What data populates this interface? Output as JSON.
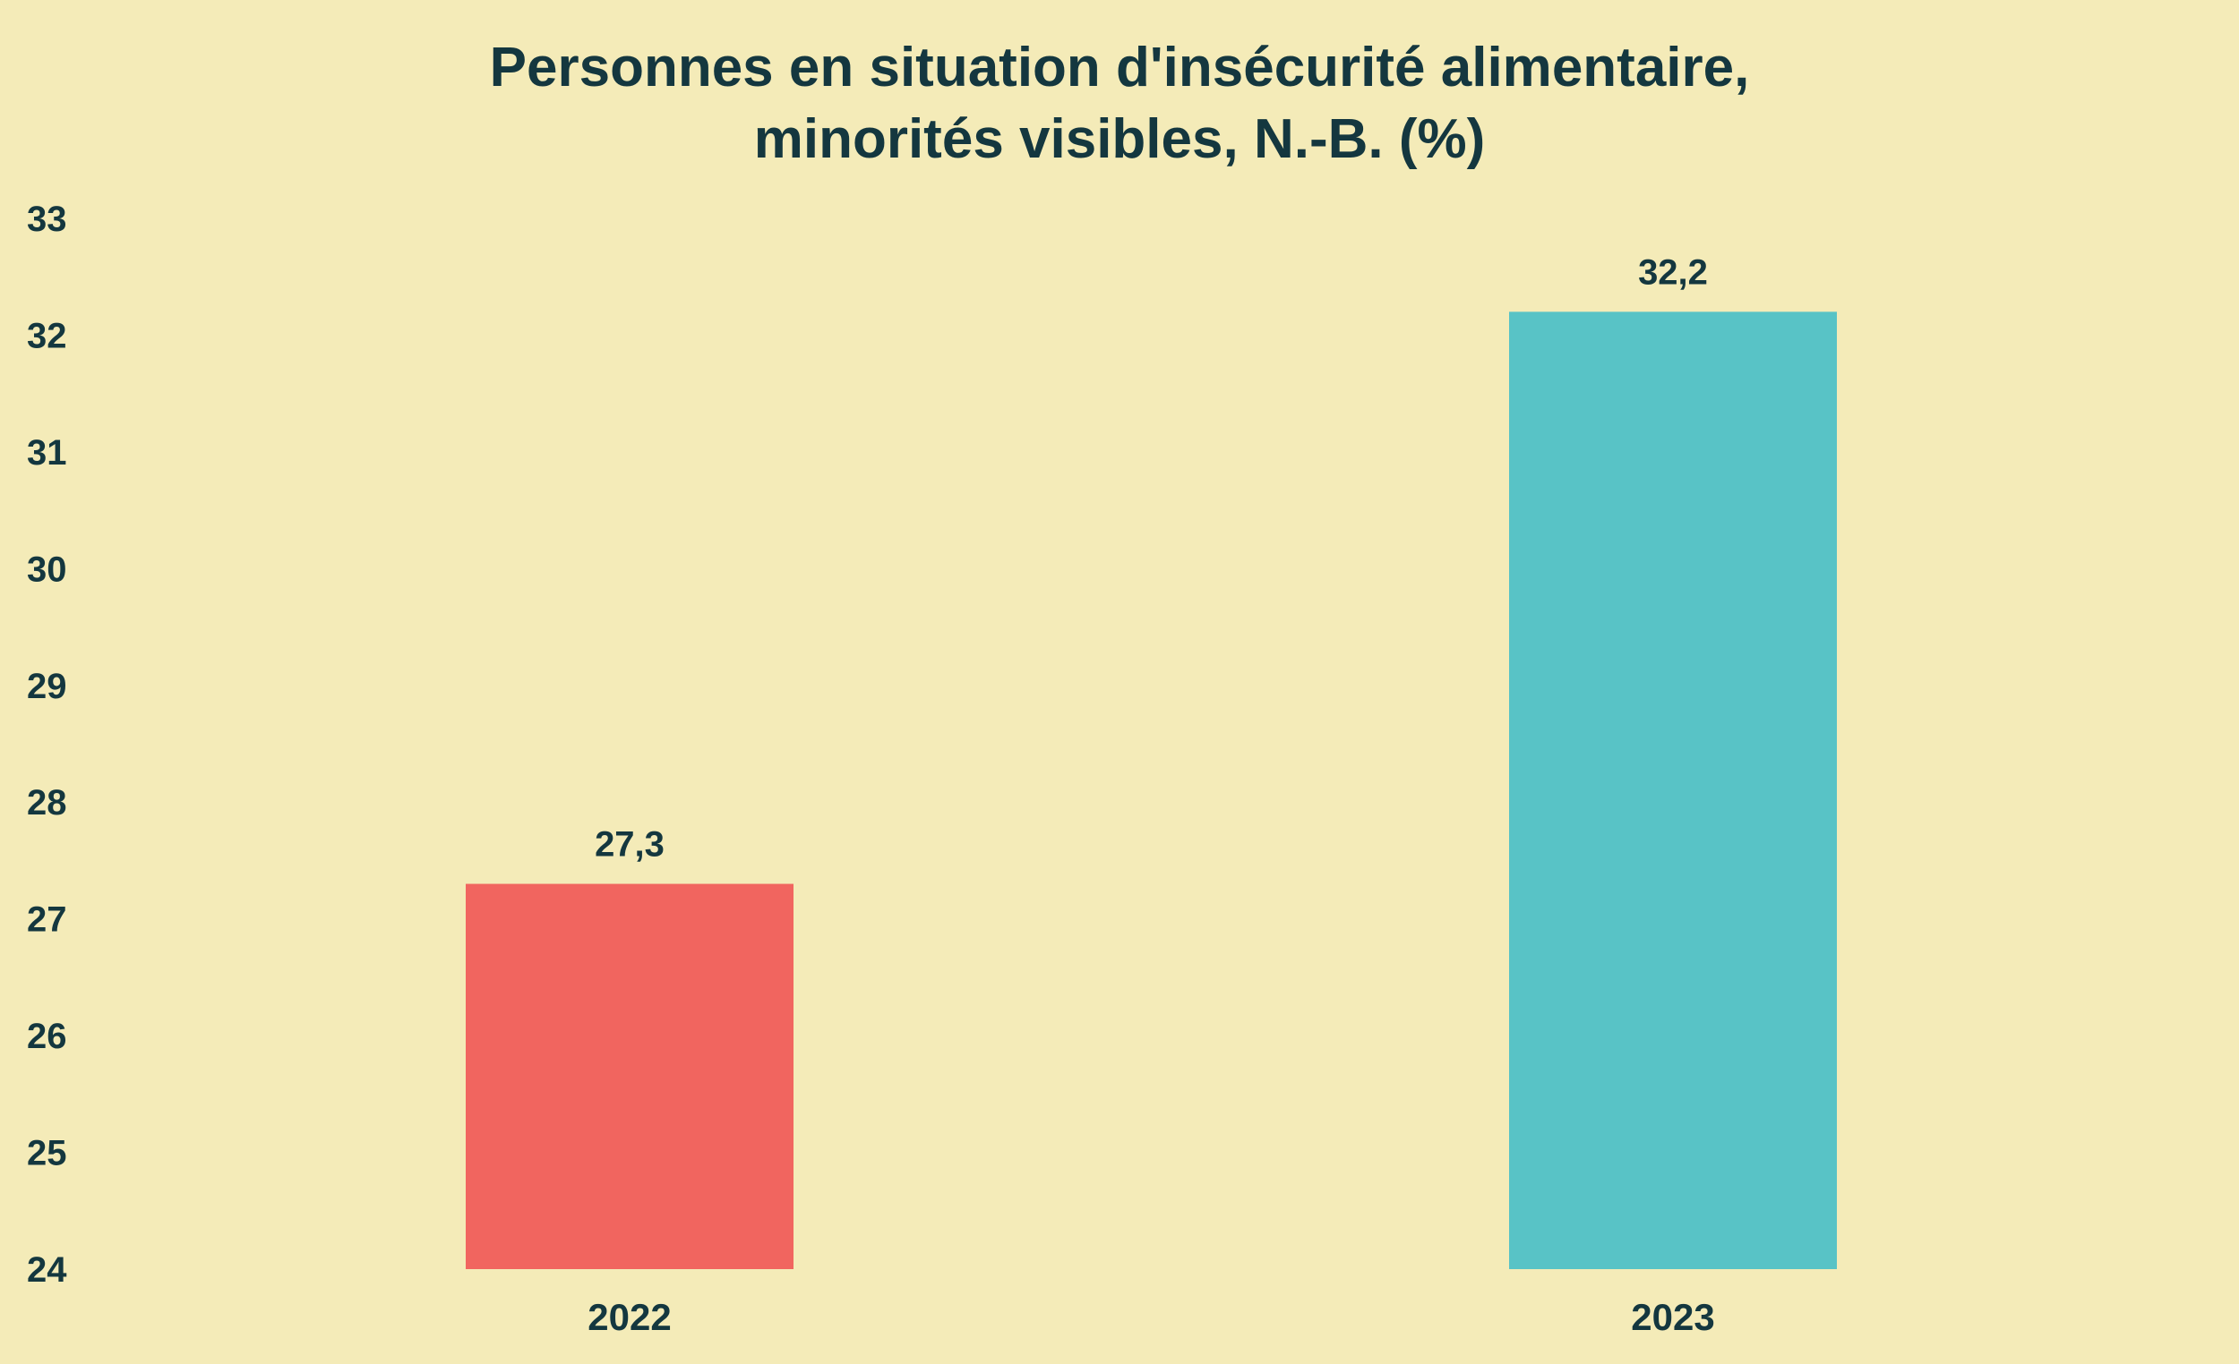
{
  "chart_data": {
    "type": "bar",
    "title": [
      "Personnes en situation d'insécurité alimentaire,",
      "minorités visibles, N.-B. (%)"
    ],
    "categories": [
      "2022",
      "2023"
    ],
    "values": [
      27.3,
      32.2
    ],
    "value_labels": [
      "27,3",
      "32,2"
    ],
    "colors": [
      "#F1655F",
      "#58C3C6"
    ],
    "ylim": [
      24,
      33
    ],
    "yticks": [
      "24",
      "25",
      "26",
      "27",
      "28",
      "29",
      "30",
      "31",
      "32",
      "33"
    ],
    "grid": false,
    "legend": "none",
    "text_color": "#14373F",
    "background": "#F4EBB8"
  }
}
